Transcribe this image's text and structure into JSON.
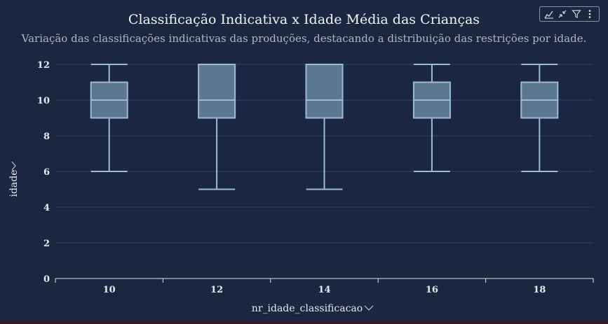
{
  "chart_data": {
    "type": "box",
    "title": "Classificação Indicativa x Idade Média das Crianças",
    "subtitle": "Variação das classificações indicativas das produções, destacando a distribuição das restrições por idade.",
    "xlabel": "nr_idade_classificacao",
    "ylabel": "idade",
    "categories": [
      "10",
      "12",
      "14",
      "16",
      "18"
    ],
    "ylim": [
      0,
      12
    ],
    "yticks": [
      0,
      2,
      4,
      6,
      8,
      10,
      12
    ],
    "grid": true,
    "boxes": [
      {
        "category": "10",
        "min": 6,
        "q1": 9,
        "median": 10,
        "q3": 11,
        "max": 12
      },
      {
        "category": "12",
        "min": 5,
        "q1": 9,
        "median": 10,
        "q3": 12,
        "max": 12
      },
      {
        "category": "14",
        "min": 5,
        "q1": 9,
        "median": 10,
        "q3": 12,
        "max": 12
      },
      {
        "category": "16",
        "min": 6,
        "q1": 9,
        "median": 10,
        "q3": 11,
        "max": 12
      },
      {
        "category": "18",
        "min": 6,
        "q1": 9,
        "median": 10,
        "q3": 11,
        "max": 12
      }
    ],
    "colors": {
      "background": "#1b2740",
      "box_fill": "#5b7791",
      "box_stroke": "#9bbcd2",
      "grid": "#334058",
      "text": "#e6e9ef"
    }
  },
  "toolbar": {
    "icons": [
      "chart-insights-icon",
      "collapse-icon",
      "filter-icon",
      "more-options-icon"
    ]
  }
}
